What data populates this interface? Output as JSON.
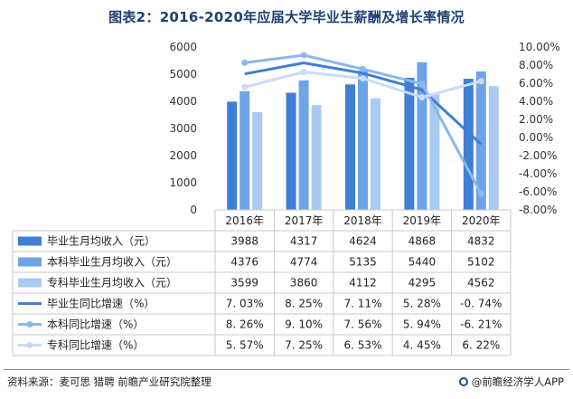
{
  "title": "图表2：2016-2020年应届大学毕业生薪酬及增长率情况",
  "source_label": "资料来源：麦可思 猎聘 前瞻产业研究院整理",
  "brand_label": "@前瞻经济学人APP",
  "colors": {
    "bar1": "#3f7fd6",
    "bar2": "#6ea4e6",
    "bar3": "#a9cbf2",
    "line1": "#3f7fd6",
    "line2": "#8cb7ec",
    "line3": "#c8dcf5",
    "title": "#1f3f73",
    "grid": "#c9c9c9"
  },
  "chart_data": {
    "type": "bar",
    "title": "图表2：2016-2020年应届大学毕业生薪酬及增长率情况",
    "categories": [
      "2016年",
      "2017年",
      "2018年",
      "2019年",
      "2020年"
    ],
    "left_axis": {
      "ylim": [
        0,
        6000
      ],
      "ticks": [
        "0",
        "1000",
        "2000",
        "3000",
        "4000",
        "5000",
        "6000"
      ]
    },
    "right_axis": {
      "ylim": [
        -8,
        10
      ],
      "ticks": [
        "-8.00%",
        "-6.00%",
        "-4.00%",
        "-2.00%",
        "0.00%",
        "2.00%",
        "4.00%",
        "6.00%",
        "8.00%",
        "10.00%"
      ]
    },
    "series": [
      {
        "name": "毕业生月均收入（元）",
        "kind": "bar",
        "values": [
          3988,
          4317,
          4624,
          4868,
          4832
        ],
        "labels": [
          "3988",
          "4317",
          "4624",
          "4868",
          "4832"
        ]
      },
      {
        "name": "本科毕业生月均收入（元）",
        "kind": "bar",
        "values": [
          4376,
          4774,
          5135,
          5440,
          5102
        ],
        "labels": [
          "4376",
          "4774",
          "5135",
          "5440",
          "5102"
        ]
      },
      {
        "name": "专科毕业生月均收入（元）",
        "kind": "bar",
        "values": [
          3599,
          3860,
          4112,
          4295,
          4562
        ],
        "labels": [
          "3599",
          "3860",
          "4112",
          "4295",
          "4562"
        ]
      },
      {
        "name": "毕业生同比增速（%）",
        "kind": "line",
        "values": [
          7.03,
          8.25,
          7.11,
          5.28,
          -0.74
        ],
        "labels": [
          "7. 03%",
          "8. 25%",
          "7. 11%",
          "5. 28%",
          "-0. 74%"
        ]
      },
      {
        "name": "本科同比增速（%）",
        "kind": "line",
        "values": [
          8.26,
          9.1,
          7.56,
          5.94,
          -6.21
        ],
        "labels": [
          "8. 26%",
          "9. 10%",
          "7. 56%",
          "5. 94%",
          "-6. 21%"
        ]
      },
      {
        "name": "专科同比增速（%）",
        "kind": "line",
        "values": [
          5.57,
          7.25,
          6.53,
          4.45,
          6.22
        ],
        "labels": [
          "5. 57%",
          "7. 25%",
          "6. 53%",
          "4. 45%",
          "6. 22%"
        ]
      }
    ]
  }
}
